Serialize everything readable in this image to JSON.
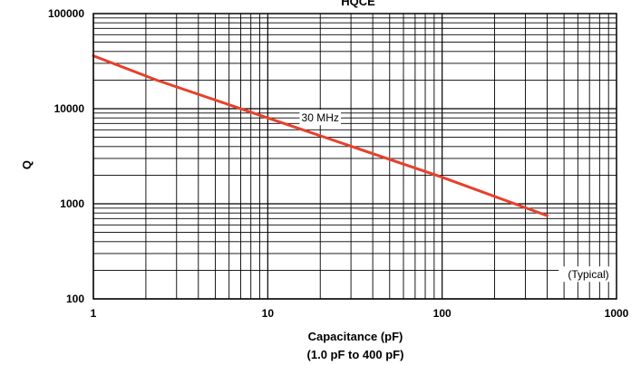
{
  "chart_data": {
    "type": "line",
    "title": "HQCE",
    "xlabel": "Capacitance (pF)",
    "xlabel_sub": "(1.0 pF to 400 pF)",
    "ylabel": "Q",
    "x_scale": "log",
    "y_scale": "log",
    "xlim": [
      1,
      1000
    ],
    "ylim": [
      100,
      100000
    ],
    "x_ticks": [
      1,
      10,
      100,
      1000
    ],
    "x_tick_labels": [
      "1",
      "10",
      "100",
      "1000"
    ],
    "y_ticks": [
      100,
      1000,
      10000,
      100000
    ],
    "y_tick_labels": [
      "100",
      "1000",
      "10000",
      "100000"
    ],
    "grid": true,
    "series": [
      {
        "name": "30 MHz",
        "color": "#e8402a",
        "x": [
          1,
          2.3,
          10,
          100,
          400
        ],
        "y": [
          36000,
          20000,
          8000,
          1900,
          750
        ]
      }
    ],
    "annotations": [
      {
        "text": "30 MHz",
        "x": 20,
        "y": 8000
      },
      {
        "text": "(Typical)",
        "x": 690,
        "y": 180
      }
    ]
  }
}
